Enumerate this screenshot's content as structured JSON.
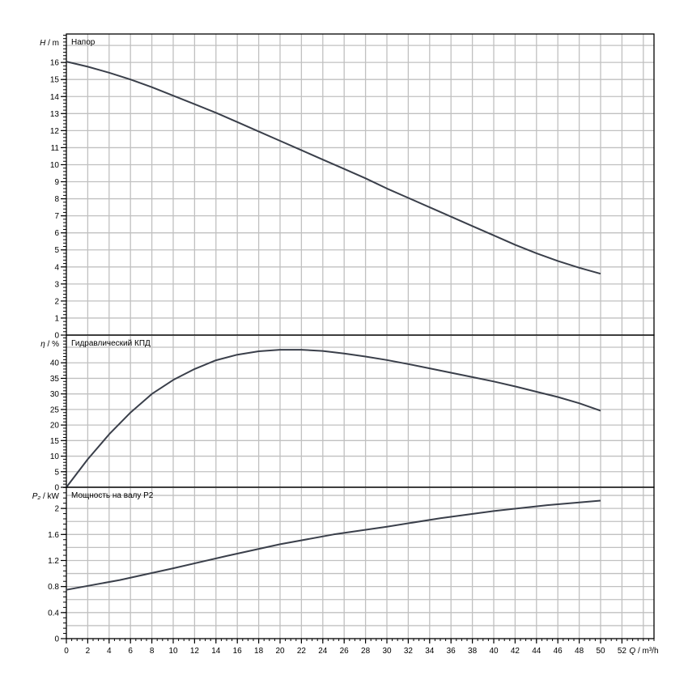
{
  "chart_data": [
    {
      "type": "line",
      "title": "Напор",
      "ylabel_symbol": "H",
      "ylabel_unit": "m",
      "xlim": [
        0,
        55
      ],
      "ylim": [
        0,
        17.67
      ],
      "ytick_step": 1,
      "grid": true,
      "x": [
        0,
        2,
        4,
        6,
        8,
        10,
        12,
        14,
        16,
        18,
        20,
        22,
        24,
        26,
        28,
        30,
        32,
        34,
        36,
        38,
        40,
        42,
        44,
        46,
        48,
        50
      ],
      "values": [
        16.05,
        15.75,
        15.4,
        15.0,
        14.55,
        14.05,
        13.55,
        13.05,
        12.5,
        11.95,
        11.4,
        10.85,
        10.3,
        9.75,
        9.2,
        8.6,
        8.05,
        7.5,
        6.95,
        6.4,
        5.85,
        5.3,
        4.8,
        4.35,
        3.95,
        3.6
      ]
    },
    {
      "type": "line",
      "title": "Гидравлический КПД",
      "ylabel_symbol": "η",
      "ylabel_unit": "%",
      "xlim": [
        0,
        55
      ],
      "ylim": [
        0,
        48.9
      ],
      "ytick_step": 5,
      "grid": true,
      "x": [
        0,
        2,
        4,
        6,
        8,
        10,
        12,
        14,
        16,
        18,
        20,
        22,
        24,
        26,
        28,
        30,
        32,
        34,
        36,
        38,
        40,
        42,
        44,
        46,
        48,
        50
      ],
      "values": [
        0,
        9,
        17,
        24,
        30,
        34.5,
        38,
        40.8,
        42.6,
        43.7,
        44.2,
        44.2,
        43.8,
        43,
        42,
        40.9,
        39.6,
        38.2,
        36.8,
        35.4,
        34,
        32.4,
        30.7,
        29,
        27,
        24.6
      ]
    },
    {
      "type": "line",
      "title": "Мощность на валу P2",
      "ylabel_symbol": "P₂",
      "ylabel_unit": "kW",
      "xlim": [
        0,
        55
      ],
      "ylim": [
        0,
        2.325
      ],
      "ytick_step": 0.4,
      "grid_step": 0.2,
      "grid": true,
      "x": [
        0,
        5,
        10,
        15,
        20,
        25,
        30,
        35,
        40,
        45,
        50
      ],
      "values": [
        0.75,
        0.9,
        1.08,
        1.27,
        1.45,
        1.6,
        1.72,
        1.85,
        1.96,
        2.05,
        2.12
      ]
    }
  ],
  "x_axis": {
    "label_symbol": "Q",
    "label_unit": "m³/h",
    "ticks": [
      "0",
      "2",
      "4",
      "6",
      "8",
      "10",
      "12",
      "14",
      "16",
      "18",
      "20",
      "22",
      "24",
      "26",
      "28",
      "30",
      "32",
      "34",
      "36",
      "38",
      "40",
      "42",
      "44",
      "46",
      "48",
      "50",
      "52"
    ]
  },
  "colors": {
    "curve": "#3a3f4a",
    "grid": "#c0c0c0",
    "axis": "#000000",
    "tick_label": "#000000"
  }
}
